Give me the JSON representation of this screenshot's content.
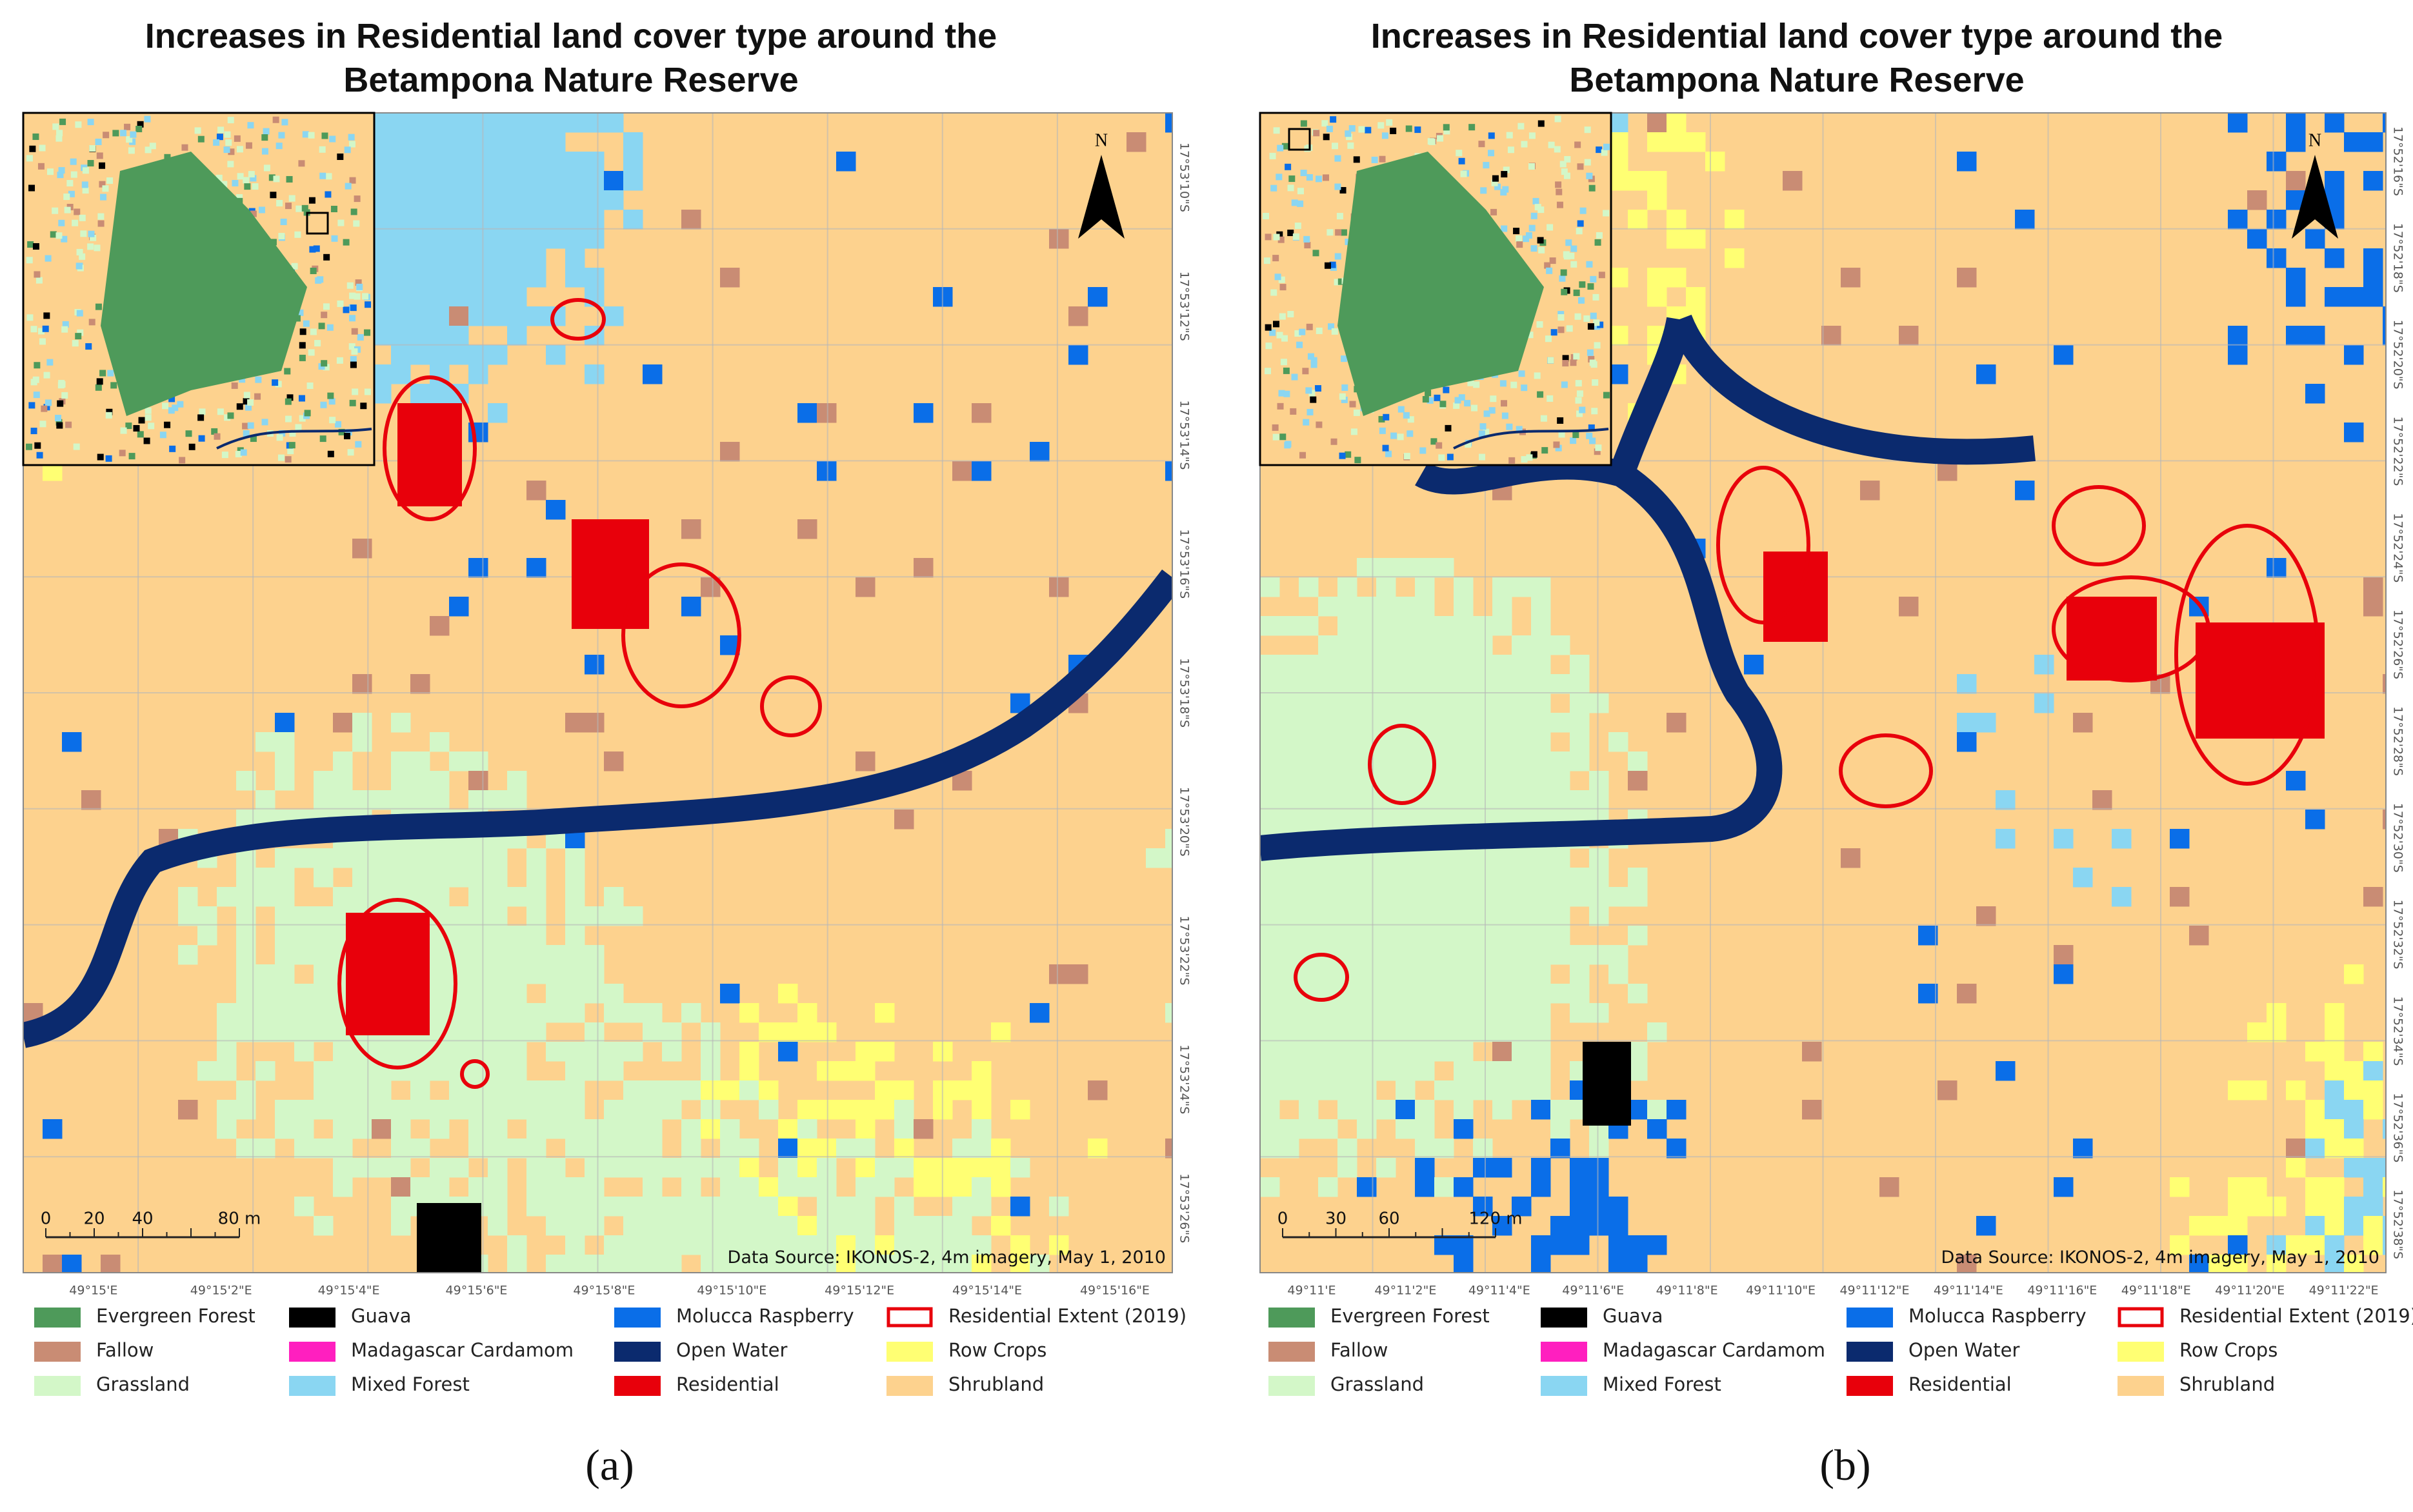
{
  "panels": [
    {
      "title": "Increases in Residential land cover type around the Betampona Nature Reserve",
      "north": "N",
      "scale_labels": [
        "0",
        "20",
        "40",
        "80 m"
      ],
      "source": "Data Source: IKONOS-2, 4m imagery, May 1, 2010",
      "x_labels": [
        "49°15'E",
        "49°15'2\"E",
        "49°15'4\"E",
        "49°15'6\"E",
        "49°15'8\"E",
        "49°15'10\"E",
        "49°15'12\"E",
        "49°15'14\"E",
        "49°15'16\"E"
      ],
      "y_labels": [
        "17°53'10\"S",
        "17°53'12\"S",
        "17°53'14\"S",
        "17°53'16\"S",
        "17°53'18\"S",
        "17°53'20\"S",
        "17°53'22\"S",
        "17°53'24\"S",
        "17°53'26\"S"
      ],
      "legend": [
        {
          "label": "Evergreen Forest",
          "color": "#4e9a5a"
        },
        {
          "label": "Fallow",
          "color": "#c98c74"
        },
        {
          "label": "Grassland",
          "color": "#d3f7c8"
        },
        {
          "label": "Guava",
          "color": "#000000"
        },
        {
          "label": "Madagascar Cardamom",
          "color": "#ff1fbf"
        },
        {
          "label": "Mixed Forest",
          "color": "#8ad6f2"
        },
        {
          "label": "Molucca Raspberry",
          "color": "#0a6ee8"
        },
        {
          "label": "Open Water",
          "color": "#0b2a6e"
        },
        {
          "label": "Residential",
          "color": "#e8000b"
        },
        {
          "label": "Residential Extent (2019)",
          "color": "#e8000b",
          "outline": true
        },
        {
          "label": "Row Crops",
          "color": "#ffff73"
        },
        {
          "label": "Shrubland",
          "color": "#fdd28e"
        }
      ],
      "caption": "(a)"
    },
    {
      "title": "Increases in Residential land cover type around the Betampona Nature Reserve",
      "north": "N",
      "scale_labels": [
        "0",
        "30",
        "60",
        "120 m"
      ],
      "source": "Data Source: IKONOS-2, 4m imagery, May 1, 2010",
      "x_labels": [
        "49°11'E",
        "49°11'2\"E",
        "49°11'4\"E",
        "49°11'6\"E",
        "49°11'8\"E",
        "49°11'10\"E",
        "49°11'12\"E",
        "49°11'14\"E",
        "49°11'16\"E",
        "49°11'18\"E",
        "49°11'20\"E",
        "49°11'22\"E"
      ],
      "y_labels": [
        "17°52'16\"S",
        "17°52'18\"S",
        "17°52'20\"S",
        "17°52'22\"S",
        "17°52'24\"S",
        "17°52'26\"S",
        "17°52'28\"S",
        "17°52'30\"S",
        "17°52'32\"S",
        "17°52'34\"S",
        "17°52'36\"S",
        "17°52'38\"S"
      ],
      "legend": [
        {
          "label": "Evergreen Forest",
          "color": "#4e9a5a"
        },
        {
          "label": "Fallow",
          "color": "#c98c74"
        },
        {
          "label": "Grassland",
          "color": "#d3f7c8"
        },
        {
          "label": "Guava",
          "color": "#000000"
        },
        {
          "label": "Madagascar Cardamom",
          "color": "#ff1fbf"
        },
        {
          "label": "Mixed Forest",
          "color": "#8ad6f2"
        },
        {
          "label": "Molucca Raspberry",
          "color": "#0a6ee8"
        },
        {
          "label": "Open Water",
          "color": "#0b2a6e"
        },
        {
          "label": "Residential",
          "color": "#e8000b"
        },
        {
          "label": "Residential Extent (2019)",
          "color": "#e8000b",
          "outline": true
        },
        {
          "label": "Row Crops",
          "color": "#ffff73"
        },
        {
          "label": "Shrubland",
          "color": "#fdd28e"
        }
      ],
      "caption": "(b)"
    }
  ]
}
